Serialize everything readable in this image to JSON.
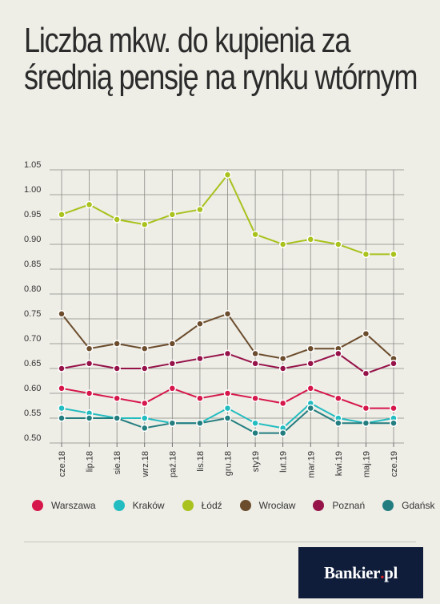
{
  "title": "Liczba mkw. do kupienia za średnią pensję na rynku wtórnym",
  "brand": {
    "name": "Bankier",
    "dot": ".",
    "tld": "pl"
  },
  "chart_data": {
    "type": "line",
    "title": "Liczba mkw. do kupienia za średnią pensję na rynku wtórnym",
    "xlabel": "",
    "ylabel": "",
    "ylim": [
      0.5,
      1.05
    ],
    "yticks": [
      "0.50",
      "0.55",
      "0.60",
      "0.65",
      "0.70",
      "0.75",
      "0.80",
      "0.85",
      "0.90",
      "0.95",
      "1.00",
      "1.05"
    ],
    "categories": [
      "cze.18",
      "lip.18",
      "sie.18",
      "wrz.18",
      "paź.18",
      "lis.18",
      "gru.18",
      "sty19",
      "lut.19",
      "mar.19",
      "kwi.19",
      "maj.19",
      "cze.19"
    ],
    "grid": true,
    "legend_position": "bottom",
    "series": [
      {
        "name": "Warszawa",
        "color": "#d6174b",
        "values": [
          0.61,
          0.6,
          0.59,
          0.58,
          0.61,
          0.59,
          0.6,
          0.59,
          0.58,
          0.61,
          0.59,
          0.57,
          0.57
        ]
      },
      {
        "name": "Kraków",
        "color": "#23bcc0",
        "values": [
          0.57,
          0.56,
          0.55,
          0.55,
          0.54,
          0.54,
          0.57,
          0.54,
          0.53,
          0.58,
          0.55,
          0.54,
          0.55
        ]
      },
      {
        "name": "Łódź",
        "color": "#a9c21d",
        "values": [
          0.96,
          0.98,
          0.95,
          0.94,
          0.96,
          0.97,
          1.04,
          0.92,
          0.9,
          0.91,
          0.9,
          0.88,
          0.88
        ]
      },
      {
        "name": "Wrocław",
        "color": "#6b4c2c",
        "values": [
          0.76,
          0.69,
          0.7,
          0.69,
          0.7,
          0.74,
          0.76,
          0.68,
          0.67,
          0.69,
          0.69,
          0.72,
          0.67
        ]
      },
      {
        "name": "Poznań",
        "color": "#96134a",
        "values": [
          0.65,
          0.66,
          0.65,
          0.65,
          0.66,
          0.67,
          0.68,
          0.66,
          0.65,
          0.66,
          0.68,
          0.64,
          0.66
        ]
      },
      {
        "name": "Gdańsk",
        "color": "#237d7f",
        "values": [
          0.55,
          0.55,
          0.55,
          0.53,
          0.54,
          0.54,
          0.55,
          0.52,
          0.52,
          0.57,
          0.54,
          0.54,
          0.54
        ]
      }
    ]
  }
}
